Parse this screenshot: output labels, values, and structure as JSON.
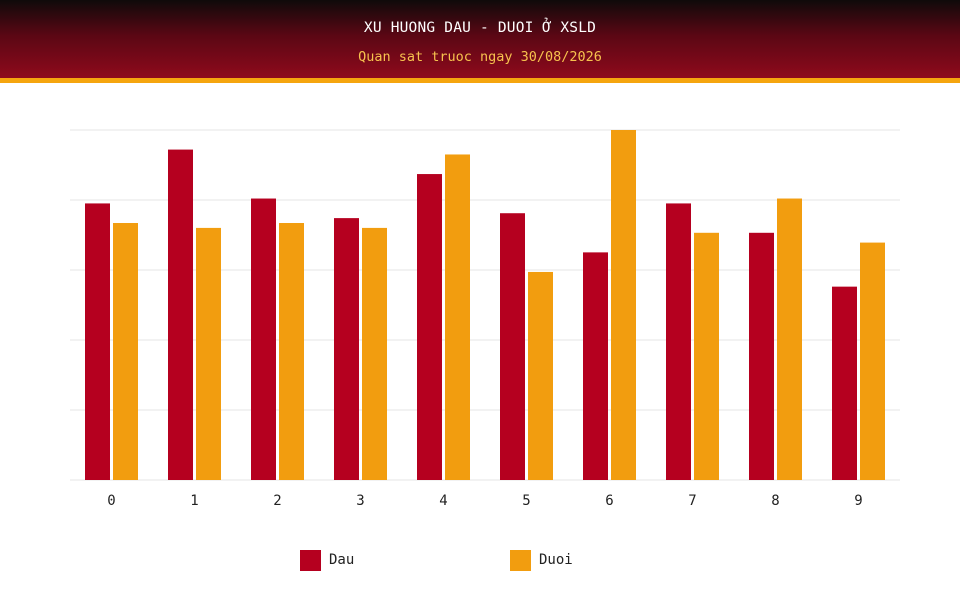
{
  "header": {
    "title": "XU HUONG DAU - DUOI Ở XSLD",
    "subtitle": "Quan sat truoc ngay 30/08/2026"
  },
  "colors": {
    "header_bottom": "#8f0a1c",
    "accent_strip": "#f5a50f",
    "subtitle_text": "#f7c24e",
    "gridline": "#e6e6e6"
  },
  "chart_data": {
    "type": "bar",
    "title": "XU HUONG DAU - DUOI Ở XSLD",
    "subtitle": "Quan sat truoc ngay 30/08/2026",
    "categories": [
      "0",
      "1",
      "2",
      "3",
      "4",
      "5",
      "6",
      "7",
      "8",
      "9"
    ],
    "series": [
      {
        "name": "Dau",
        "color": "#b5001f",
        "values": [
          56.5,
          67.5,
          57.5,
          53.5,
          62.5,
          54.5,
          46.5,
          56.5,
          50.5,
          39.5
        ]
      },
      {
        "name": "Duoi",
        "color": "#f29d0f",
        "values": [
          52.5,
          51.5,
          52.5,
          51.5,
          66.5,
          42.5,
          71.5,
          50.5,
          57.5,
          48.5
        ]
      }
    ],
    "xlabel": "",
    "ylabel": "",
    "ylim": [
      0,
      71.5
    ],
    "grid": true,
    "y_tick_labels": false,
    "legend": "bottom"
  }
}
